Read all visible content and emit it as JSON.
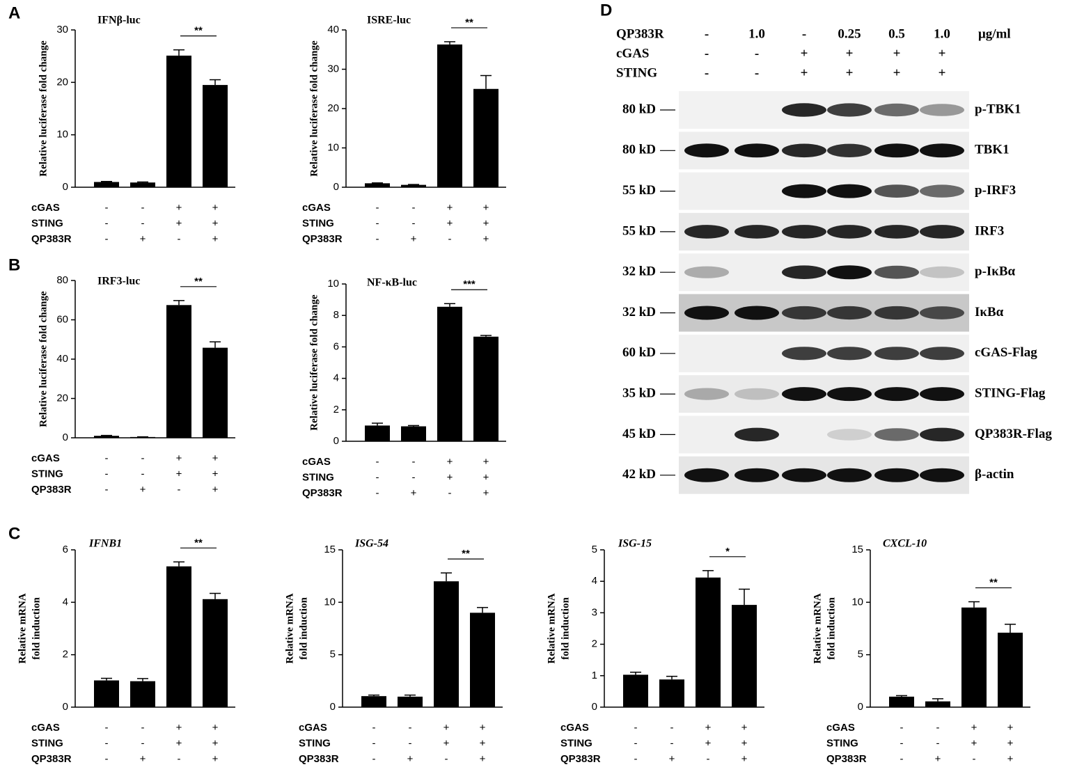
{
  "chart_data": [
    {
      "type": "bar",
      "panel": "A",
      "title": "IFNβ-luc",
      "ylabel": [
        "Relative luciferase fold change"
      ],
      "values": [
        1.0,
        0.9,
        25.1,
        19.5
      ],
      "errors": [
        0.1,
        0.1,
        1.1,
        1.0
      ],
      "color": "#000000",
      "ylim": [
        0,
        30
      ],
      "yticks": [
        0,
        10,
        20,
        30
      ],
      "significance": "**",
      "conditions": [
        {
          "name": "cGAS",
          "values": [
            "-",
            "-",
            "+",
            "+"
          ]
        },
        {
          "name": "STING",
          "values": [
            "-",
            "-",
            "+",
            "+"
          ]
        },
        {
          "name": "QP383R",
          "values": [
            "-",
            "+",
            "-",
            "+"
          ]
        }
      ]
    },
    {
      "type": "bar",
      "title": "ISRE-luc",
      "ylabel": [
        "Relative luciferase fold change"
      ],
      "values": [
        1.0,
        0.6,
        36.3,
        25.0
      ],
      "errors": [
        0.1,
        0.1,
        0.7,
        3.4
      ],
      "color": "#000000",
      "ylim": [
        0,
        40
      ],
      "yticks": [
        0,
        10,
        20,
        30,
        40
      ],
      "significance": "**",
      "conditions": [
        {
          "name": "cGAS",
          "values": [
            "-",
            "-",
            "+",
            "+"
          ]
        },
        {
          "name": "STING",
          "values": [
            "-",
            "-",
            "+",
            "+"
          ]
        },
        {
          "name": "QP383R",
          "values": [
            "-",
            "+",
            "-",
            "+"
          ]
        }
      ]
    },
    {
      "type": "bar",
      "panel": "B",
      "title": "IRF3-luc",
      "ylabel": [
        "Relative luciferase fold change"
      ],
      "values": [
        1.0,
        0.4,
        67.5,
        45.8
      ],
      "errors": [
        0.2,
        0.1,
        2.3,
        3.0
      ],
      "color": "#000000",
      "ylim": [
        0,
        80
      ],
      "yticks": [
        0,
        20,
        40,
        60,
        80
      ],
      "significance": "**",
      "conditions": [
        {
          "name": "cGAS",
          "values": [
            "-",
            "-",
            "+",
            "+"
          ]
        },
        {
          "name": "STING",
          "values": [
            "-",
            "-",
            "+",
            "+"
          ]
        },
        {
          "name": "QP383R",
          "values": [
            "-",
            "+",
            "-",
            "+"
          ]
        }
      ]
    },
    {
      "type": "bar",
      "title": "NF-κB-luc",
      "ylabel": [
        "Relative luciferase fold change"
      ],
      "values": [
        1.0,
        0.95,
        8.55,
        6.65
      ],
      "errors": [
        0.15,
        0.05,
        0.2,
        0.08
      ],
      "color": "#000000",
      "ylim": [
        0,
        10
      ],
      "yticks": [
        0,
        2,
        4,
        6,
        8,
        10
      ],
      "significance": "***",
      "conditions": [
        {
          "name": "cGAS",
          "values": [
            "-",
            "-",
            "+",
            "+"
          ]
        },
        {
          "name": "STING",
          "values": [
            "-",
            "-",
            "+",
            "+"
          ]
        },
        {
          "name": "QP383R",
          "values": [
            "-",
            "+",
            "-",
            "+"
          ]
        }
      ]
    },
    {
      "type": "bar",
      "panel": "C",
      "title": "IFNB1",
      "title_italic": true,
      "ylabel": [
        "Relative mRNA",
        "fold induction"
      ],
      "values": [
        1.02,
        0.99,
        5.37,
        4.12
      ],
      "errors": [
        0.08,
        0.1,
        0.17,
        0.22
      ],
      "color": "#000000",
      "ylim": [
        0,
        6
      ],
      "yticks": [
        0,
        2,
        4,
        6
      ],
      "significance": "**",
      "conditions": [
        {
          "name": "cGAS",
          "values": [
            "-",
            "-",
            "+",
            "+"
          ]
        },
        {
          "name": "STING",
          "values": [
            "-",
            "-",
            "+",
            "+"
          ]
        },
        {
          "name": "QP383R",
          "values": [
            "-",
            "+",
            "-",
            "+"
          ]
        }
      ]
    },
    {
      "type": "bar",
      "title": "ISG-54",
      "title_italic": true,
      "ylabel": [
        "Relative mRNA",
        "fold induction"
      ],
      "values": [
        1.05,
        1.0,
        12.0,
        9.0
      ],
      "errors": [
        0.1,
        0.15,
        0.8,
        0.5
      ],
      "color": "#000000",
      "ylim": [
        0,
        15
      ],
      "yticks": [
        0,
        5,
        10,
        15
      ],
      "significance": "**",
      "conditions": [
        {
          "name": "cGAS",
          "values": [
            "-",
            "-",
            "+",
            "+"
          ]
        },
        {
          "name": "STING",
          "values": [
            "-",
            "-",
            "+",
            "+"
          ]
        },
        {
          "name": "QP383R",
          "values": [
            "-",
            "+",
            "-",
            "+"
          ]
        }
      ]
    },
    {
      "type": "bar",
      "title": "ISG-15",
      "title_italic": true,
      "ylabel": [
        "Relative mRNA",
        "fold induction"
      ],
      "values": [
        1.03,
        0.88,
        4.12,
        3.25
      ],
      "errors": [
        0.08,
        0.1,
        0.22,
        0.5
      ],
      "color": "#000000",
      "ylim": [
        0,
        5
      ],
      "yticks": [
        0,
        1,
        2,
        3,
        4,
        5
      ],
      "significance": "*",
      "conditions": [
        {
          "name": "cGAS",
          "values": [
            "-",
            "-",
            "+",
            "+"
          ]
        },
        {
          "name": "STING",
          "values": [
            "-",
            "-",
            "+",
            "+"
          ]
        },
        {
          "name": "QP383R",
          "values": [
            "-",
            "+",
            "-",
            "+"
          ]
        }
      ]
    },
    {
      "type": "bar",
      "title": "CXCL-10",
      "title_italic": true,
      "ylabel": [
        "Relative mRNA",
        "fold induction"
      ],
      "values": [
        1.0,
        0.55,
        9.5,
        7.1
      ],
      "errors": [
        0.1,
        0.25,
        0.55,
        0.8
      ],
      "color": "#000000",
      "ylim": [
        0,
        15
      ],
      "yticks": [
        0,
        5,
        10,
        15
      ],
      "significance": "**",
      "conditions": [
        {
          "name": "cGAS",
          "values": [
            "-",
            "-",
            "+",
            "+"
          ]
        },
        {
          "name": "STING",
          "values": [
            "-",
            "-",
            "+",
            "+"
          ]
        },
        {
          "name": "QP383R",
          "values": [
            "-",
            "+",
            "-",
            "+"
          ]
        }
      ]
    }
  ],
  "blot": {
    "panel": "D",
    "unit": "μg/ml",
    "header": [
      {
        "name": "QP383R",
        "values": [
          "-",
          "1.0",
          "-",
          "0.25",
          "0.5",
          "1.0"
        ]
      },
      {
        "name": "cGAS",
        "values": [
          "-",
          "-",
          "+",
          "+",
          "+",
          "+"
        ]
      },
      {
        "name": "STING",
        "values": [
          "-",
          "-",
          "+",
          "+",
          "+",
          "+"
        ]
      }
    ],
    "rows": [
      {
        "size": "80 kD",
        "protein": "p-TBK1"
      },
      {
        "size": "80 kD",
        "protein": "TBK1"
      },
      {
        "size": "55 kD",
        "protein": "p-IRF3"
      },
      {
        "size": "55 kD",
        "protein": "IRF3"
      },
      {
        "size": "32 kD",
        "protein": "p-IκBα"
      },
      {
        "size": "32 kD",
        "protein": "IκBα"
      },
      {
        "size": "60 kD",
        "protein": "cGAS-Flag"
      },
      {
        "size": "35 kD",
        "protein": "STING-Flag"
      },
      {
        "size": "45 kD",
        "protein": "QP383R-Flag"
      },
      {
        "size": "42 kD",
        "protein": "β-actin"
      }
    ]
  }
}
